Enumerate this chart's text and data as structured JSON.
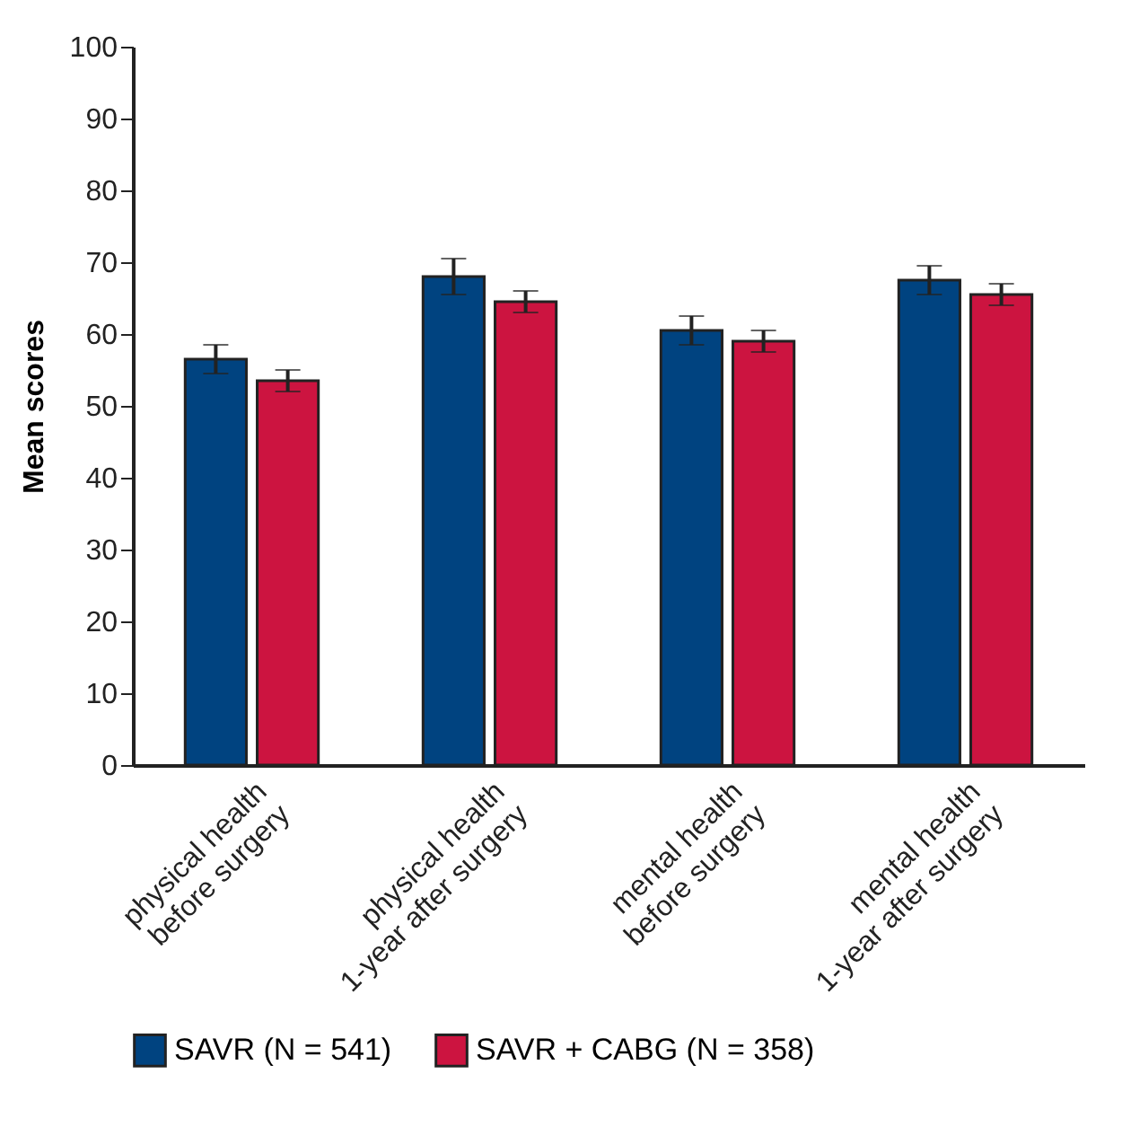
{
  "chart_data": {
    "type": "bar",
    "ylabel": "Mean scores",
    "categories": [
      "physical health\nbefore surgery",
      "physical health\n1-year after surgery",
      "mental health\nbefore surgery",
      "mental health\n1-year after surgery"
    ],
    "series": [
      {
        "name": "SAVR (N = 541)",
        "color": "#004380",
        "values": [
          56.5,
          68,
          60.5,
          67.5
        ],
        "errors": [
          2,
          2.5,
          2,
          2
        ]
      },
      {
        "name": "SAVR + CABG (N = 358)",
        "color": "#cc1440",
        "values": [
          53.5,
          64.5,
          59,
          65.5
        ],
        "errors": [
          1.5,
          1.5,
          1.5,
          1.5
        ]
      }
    ],
    "ylim": [
      0,
      100
    ],
    "yticks": [
      0,
      10,
      20,
      30,
      40,
      50,
      60,
      70,
      80,
      90,
      100
    ],
    "grid": false,
    "legend": "bottom"
  }
}
